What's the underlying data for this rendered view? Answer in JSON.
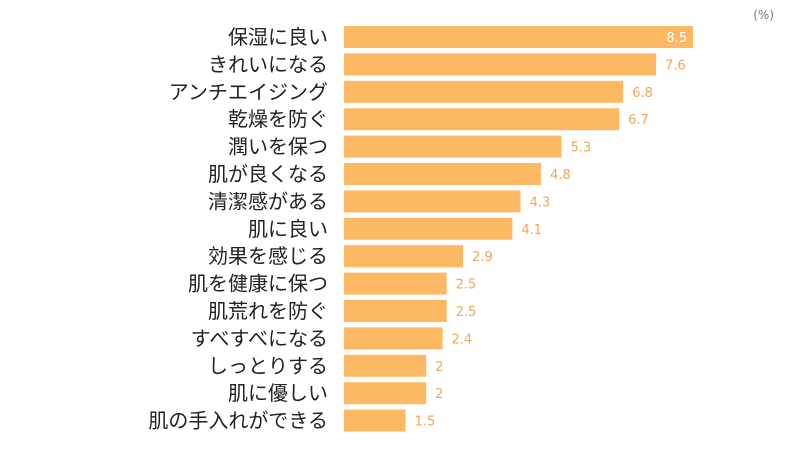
{
  "chart_data": {
    "type": "bar",
    "orientation": "horizontal",
    "unit_label": "(%)",
    "categories": [
      "保湿に良い",
      "きれいになる",
      "アンチエイジング",
      "乾燥を防ぐ",
      "潤いを保つ",
      "肌が良くなる",
      "清潔感がある",
      "肌に良い",
      "効果を感じる",
      "肌を健康に保つ",
      "肌荒れを防ぐ",
      "すべすべになる",
      "しっとりする",
      "肌に優しい",
      "肌の手入れができる"
    ],
    "values": [
      8.5,
      7.6,
      6.8,
      6.7,
      5.3,
      4.8,
      4.3,
      4.1,
      2.9,
      2.5,
      2.5,
      2.4,
      2,
      2,
      1.5
    ],
    "value_labels": [
      "8.5",
      "7.6",
      "6.8",
      "6.7",
      "5.3",
      "4.8",
      "4.3",
      "4.1",
      "2.9",
      "2.5",
      "2.5",
      "2.4",
      "2",
      "2",
      "1.5"
    ],
    "xlim": [
      0,
      8.5
    ],
    "bar_color": "#FDB863",
    "value_label_color": "#F0A65A",
    "inside_label_color": "#ffffff",
    "category_label_color": "#222222",
    "grid": false,
    "legend": "none"
  }
}
